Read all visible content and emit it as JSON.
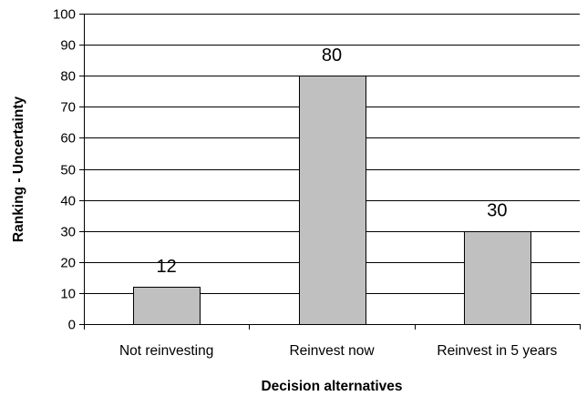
{
  "chart_data": {
    "type": "bar",
    "title": "",
    "xlabel": "Decision alternatives",
    "ylabel": "Ranking - Uncertainty",
    "categories": [
      "Not reinvesting",
      "Reinvest now",
      "Reinvest in 5 years"
    ],
    "values": [
      12,
      80,
      30
    ],
    "data_labels": [
      "12",
      "80",
      "30"
    ],
    "ylim": [
      0,
      100
    ],
    "yticks": [
      0,
      10,
      20,
      30,
      40,
      50,
      60,
      70,
      80,
      90,
      100
    ],
    "grid": true,
    "legend": "none",
    "colors": {
      "bar_fill": "#c0c0c0",
      "bar_stroke": "#000000",
      "grid": "#000000",
      "axis": "#000000"
    }
  }
}
